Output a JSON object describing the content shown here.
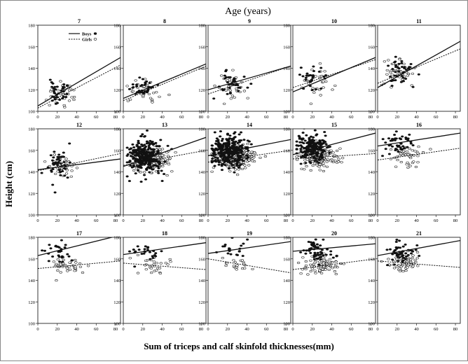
{
  "chart_data": {
    "type": "scatter",
    "title": "Age (years)",
    "xlabel": "Sum of triceps and calf skinfold thicknesses(mm)",
    "ylabel": "Height (cm)",
    "xlim": [
      0,
      85
    ],
    "xticks": [
      0,
      20,
      40,
      60,
      80
    ],
    "grid": false,
    "legend": {
      "position": "top-left",
      "entries": [
        {
          "label": "Boys",
          "line": "solid",
          "marker": "filled-circle"
        },
        {
          "label": "Girls",
          "line": "dashed",
          "marker": "open-circle"
        }
      ]
    },
    "panels": [
      {
        "age": "7",
        "ylim": [
          100,
          180
        ],
        "yticks": [
          100,
          120,
          140,
          160,
          180
        ],
        "boys_line": [
          [
            0,
            105
          ],
          [
            85,
            150
          ]
        ],
        "girls_line": [
          [
            0,
            103
          ],
          [
            85,
            143
          ]
        ],
        "boys": {
          "n": 35,
          "x_mean": 22,
          "x_sd": 6,
          "y_mean": 118,
          "y_sd": 5,
          "seed": 11
        },
        "girls": {
          "n": 35,
          "x_mean": 24,
          "x_sd": 7,
          "y_mean": 116,
          "y_sd": 5,
          "seed": 12
        }
      },
      {
        "age": "8",
        "ylim": [
          100,
          180
        ],
        "yticks": [
          100,
          120,
          140,
          160,
          180
        ],
        "boys_line": [
          [
            0,
            112
          ],
          [
            85,
            144
          ]
        ],
        "girls_line": [
          [
            0,
            110
          ],
          [
            85,
            142
          ]
        ],
        "boys": {
          "n": 35,
          "x_mean": 20,
          "x_sd": 6,
          "y_mean": 122,
          "y_sd": 5,
          "seed": 21
        },
        "girls": {
          "n": 35,
          "x_mean": 22,
          "x_sd": 8,
          "y_mean": 120,
          "y_sd": 5,
          "seed": 22
        }
      },
      {
        "age": "9",
        "ylim": [
          100,
          180
        ],
        "yticks": [
          100,
          120,
          140,
          160,
          180
        ],
        "boys_line": [
          [
            0,
            120
          ],
          [
            85,
            142
          ]
        ],
        "girls_line": [
          [
            0,
            116
          ],
          [
            85,
            142
          ]
        ],
        "boys": {
          "n": 35,
          "x_mean": 24,
          "x_sd": 7,
          "y_mean": 126,
          "y_sd": 6,
          "seed": 31
        },
        "girls": {
          "n": 35,
          "x_mean": 25,
          "x_sd": 8,
          "y_mean": 124,
          "y_sd": 6,
          "seed": 32
        }
      },
      {
        "age": "10",
        "ylim": [
          100,
          180
        ],
        "yticks": [
          100,
          120,
          140,
          160,
          180
        ],
        "boys_line": [
          [
            0,
            118
          ],
          [
            85,
            150
          ]
        ],
        "girls_line": [
          [
            0,
            122
          ],
          [
            85,
            148
          ]
        ],
        "boys": {
          "n": 30,
          "x_mean": 22,
          "x_sd": 7,
          "y_mean": 130,
          "y_sd": 7,
          "seed": 41
        },
        "girls": {
          "n": 30,
          "x_mean": 24,
          "x_sd": 8,
          "y_mean": 130,
          "y_sd": 7,
          "seed": 42
        }
      },
      {
        "age": "11",
        "ylim": [
          100,
          180
        ],
        "yticks": [
          100,
          120,
          140,
          160,
          180
        ],
        "boys_line": [
          [
            0,
            122
          ],
          [
            85,
            165
          ]
        ],
        "girls_line": [
          [
            0,
            126
          ],
          [
            85,
            158
          ]
        ],
        "boys": {
          "n": 40,
          "x_mean": 22,
          "x_sd": 7,
          "y_mean": 136,
          "y_sd": 7,
          "seed": 51
        },
        "girls": {
          "n": 40,
          "x_mean": 24,
          "x_sd": 8,
          "y_mean": 136,
          "y_sd": 7,
          "seed": 52
        }
      },
      {
        "age": "12",
        "ylim": [
          100,
          180
        ],
        "yticks": [
          100,
          120,
          140,
          160,
          180
        ],
        "boys_line": [
          [
            0,
            142
          ],
          [
            85,
            152
          ]
        ],
        "girls_line": [
          [
            0,
            141
          ],
          [
            85,
            157
          ]
        ],
        "boys": {
          "n": 45,
          "x_mean": 20,
          "x_sd": 7,
          "y_mean": 148,
          "y_sd": 8,
          "seed": 61
        },
        "girls": {
          "n": 40,
          "x_mean": 24,
          "x_sd": 8,
          "y_mean": 146,
          "y_sd": 6,
          "seed": 62
        }
      },
      {
        "age": "13",
        "ylim": [
          100,
          180
        ],
        "yticks": [
          100,
          120,
          140,
          160,
          180
        ],
        "boys_line": [
          [
            0,
            145
          ],
          [
            85,
            172
          ]
        ],
        "girls_line": [
          [
            0,
            146
          ],
          [
            85,
            160
          ]
        ],
        "boys": {
          "n": 260,
          "x_mean": 22,
          "x_sd": 9,
          "y_mean": 155,
          "y_sd": 8,
          "seed": 71
        },
        "girls": {
          "n": 200,
          "x_mean": 28,
          "x_sd": 10,
          "y_mean": 152,
          "y_sd": 6,
          "seed": 72
        }
      },
      {
        "age": "14",
        "ylim": [
          100,
          180
        ],
        "yticks": [
          100,
          120,
          140,
          160,
          180
        ],
        "boys_line": [
          [
            0,
            155
          ],
          [
            85,
            170
          ]
        ],
        "girls_line": [
          [
            0,
            149
          ],
          [
            85,
            160
          ]
        ],
        "boys": {
          "n": 300,
          "x_mean": 22,
          "x_sd": 9,
          "y_mean": 160,
          "y_sd": 7,
          "seed": 81
        },
        "girls": {
          "n": 260,
          "x_mean": 28,
          "x_sd": 10,
          "y_mean": 153,
          "y_sd": 5,
          "seed": 82
        }
      },
      {
        "age": "15",
        "ylim": [
          100,
          180
        ],
        "yticks": [
          100,
          120,
          140,
          160,
          180
        ],
        "boys_line": [
          [
            0,
            156
          ],
          [
            85,
            176
          ]
        ],
        "girls_line": [
          [
            0,
            152
          ],
          [
            85,
            157
          ]
        ],
        "boys": {
          "n": 200,
          "x_mean": 20,
          "x_sd": 9,
          "y_mean": 163,
          "y_sd": 6,
          "seed": 91
        },
        "girls": {
          "n": 150,
          "x_mean": 28,
          "x_sd": 10,
          "y_mean": 154,
          "y_sd": 5,
          "seed": 92
        }
      },
      {
        "age": "16",
        "ylim": [
          100,
          180
        ],
        "yticks": [
          100,
          120,
          140,
          160,
          180
        ],
        "boys_line": [
          [
            0,
            164
          ],
          [
            85,
            176
          ]
        ],
        "girls_line": [
          [
            0,
            151
          ],
          [
            85,
            162
          ]
        ],
        "boys": {
          "n": 45,
          "x_mean": 22,
          "x_sd": 8,
          "y_mean": 166,
          "y_sd": 5,
          "seed": 101
        },
        "girls": {
          "n": 50,
          "x_mean": 30,
          "x_sd": 9,
          "y_mean": 155,
          "y_sd": 5,
          "seed": 102
        }
      },
      {
        "age": "17",
        "ylim": [
          100,
          180
        ],
        "yticks": [
          100,
          120,
          140,
          160,
          180
        ],
        "boys_line": [
          [
            0,
            163
          ],
          [
            85,
            182
          ]
        ],
        "girls_line": [
          [
            0,
            151
          ],
          [
            85,
            158
          ]
        ],
        "boys": {
          "n": 30,
          "x_mean": 22,
          "x_sd": 8,
          "y_mean": 168,
          "y_sd": 5,
          "seed": 111
        },
        "girls": {
          "n": 40,
          "x_mean": 30,
          "x_sd": 9,
          "y_mean": 155,
          "y_sd": 5,
          "seed": 112
        }
      },
      {
        "age": "18",
        "ylim": [
          100,
          180
        ],
        "yticks": [
          100,
          120,
          140,
          160,
          180
        ],
        "boys_line": [
          [
            0,
            164
          ],
          [
            85,
            175
          ]
        ],
        "girls_line": [
          [
            0,
            156
          ],
          [
            85,
            150
          ]
        ],
        "boys": {
          "n": 25,
          "x_mean": 22,
          "x_sd": 7,
          "y_mean": 168,
          "y_sd": 4,
          "seed": 121
        },
        "girls": {
          "n": 30,
          "x_mean": 30,
          "x_sd": 9,
          "y_mean": 154,
          "y_sd": 5,
          "seed": 122
        }
      },
      {
        "age": "19",
        "ylim": [
          100,
          180
        ],
        "yticks": [
          100,
          120,
          140,
          160,
          180
        ],
        "boys_line": [
          [
            0,
            165
          ],
          [
            85,
            176
          ]
        ],
        "girls_line": [
          [
            0,
            160
          ],
          [
            85,
            147
          ]
        ],
        "boys": {
          "n": 20,
          "x_mean": 26,
          "x_sd": 8,
          "y_mean": 170,
          "y_sd": 4,
          "seed": 131
        },
        "girls": {
          "n": 20,
          "x_mean": 30,
          "x_sd": 8,
          "y_mean": 155,
          "y_sd": 4,
          "seed": 132
        }
      },
      {
        "age": "20",
        "ylim": [
          100,
          180
        ],
        "yticks": [
          100,
          120,
          140,
          160,
          180
        ],
        "boys_line": [
          [
            0,
            167
          ],
          [
            85,
            174
          ]
        ],
        "girls_line": [
          [
            0,
            150
          ],
          [
            85,
            160
          ]
        ],
        "boys": {
          "n": 60,
          "x_mean": 22,
          "x_sd": 8,
          "y_mean": 168,
          "y_sd": 5,
          "seed": 141
        },
        "girls": {
          "n": 90,
          "x_mean": 30,
          "x_sd": 9,
          "y_mean": 155,
          "y_sd": 5,
          "seed": 142
        }
      },
      {
        "age": "21",
        "ylim": [
          100,
          180
        ],
        "yticks": [
          100,
          120,
          140,
          160,
          180
        ],
        "boys_line": [
          [
            0,
            163
          ],
          [
            85,
            177
          ]
        ],
        "girls_line": [
          [
            0,
            158
          ],
          [
            85,
            152
          ]
        ],
        "boys": {
          "n": 50,
          "x_mean": 22,
          "x_sd": 7,
          "y_mean": 167,
          "y_sd": 5,
          "seed": 151
        },
        "girls": {
          "n": 70,
          "x_mean": 28,
          "x_sd": 8,
          "y_mean": 156,
          "y_sd": 5,
          "seed": 152
        }
      }
    ]
  }
}
